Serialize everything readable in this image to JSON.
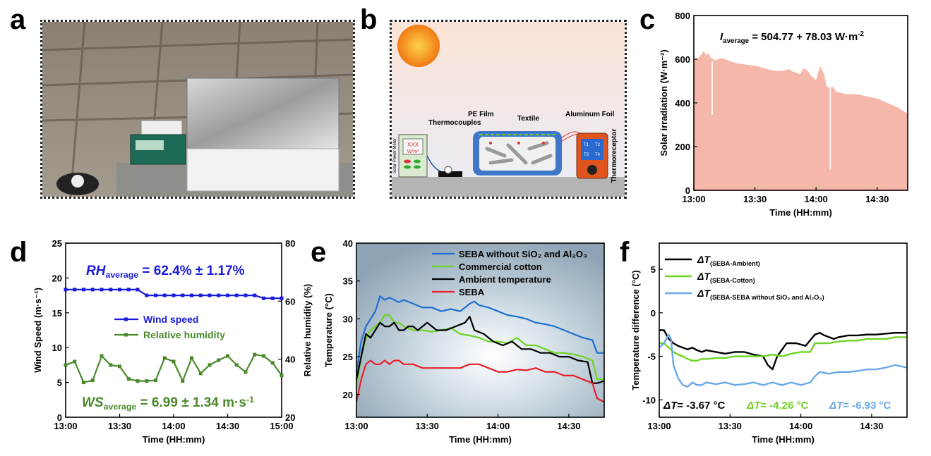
{
  "panel_labels": {
    "a": "a",
    "b": "b",
    "c": "c",
    "d": "d",
    "e": "e",
    "f": "f"
  },
  "schematic": {
    "pe_film": "PE Film",
    "thermocouples": "Thermocouples",
    "textile": "Textile",
    "aluminum_foil": "Aluminum Foil",
    "thermoreceptor": "Thermoreceptor",
    "solar_power_meter": "Solar Power Meter",
    "meter_reading": "XXX",
    "meter_unit": "W/m²",
    "channels": [
      "T1",
      "T2",
      "T3",
      "T4"
    ]
  },
  "chart_data": [
    {
      "id": "c",
      "type": "area",
      "xlabel": "Time (HH:mm)",
      "ylabel": "Solar irradiation (W·m⁻²)",
      "ylim": [
        0,
        800
      ],
      "yticks": [
        0,
        200,
        400,
        600,
        800
      ],
      "xticks": [
        "13:00",
        "13:30",
        "14:00",
        "14:30"
      ],
      "annotation": {
        "prefix": "I",
        "sub": "average",
        "text": " = 504.77 + 78.03 W·m",
        "sup": "-2"
      },
      "color": "#f5b7aa",
      "x_minutes": [
        0,
        2,
        4,
        5,
        6,
        7,
        8,
        10,
        12,
        14,
        18,
        22,
        26,
        30,
        34,
        38,
        42,
        45,
        47,
        48,
        50,
        52,
        54,
        56,
        58,
        60,
        62,
        64,
        65,
        66,
        68,
        70,
        75,
        80,
        85,
        90,
        95,
        100,
        105
      ],
      "values": [
        600,
        605,
        625,
        640,
        615,
        630,
        610,
        595,
        600,
        605,
        590,
        580,
        575,
        570,
        560,
        550,
        545,
        550,
        555,
        545,
        540,
        530,
        560,
        545,
        520,
        505,
        570,
        530,
        480,
        470,
        475,
        450,
        440,
        440,
        430,
        420,
        400,
        380,
        350
      ],
      "dips": [
        {
          "x_minutes": 9,
          "value": 345
        },
        {
          "x_minutes": 67,
          "value": 95
        }
      ]
    },
    {
      "id": "d",
      "type": "line",
      "xlabel": "Time (HH:mm)",
      "ylabel_left": "Wind Speed (m·s⁻¹)",
      "ylabel_right": "Relative humidity (%)",
      "ylim_left": [
        0,
        25
      ],
      "ylim_right": [
        20,
        80
      ],
      "yticks_left": [
        0,
        5,
        10,
        15,
        20,
        25
      ],
      "yticks_right": [
        20,
        40,
        60,
        80
      ],
      "xticks": [
        "13:00",
        "13:30",
        "14:00",
        "14:30",
        "15:00"
      ],
      "annotations": [
        {
          "prefix": "RH",
          "sub": "average",
          "text": " = 62.4% ± 1.17%",
          "color": "#1a1adb"
        },
        {
          "prefix": "WS",
          "sub": "average",
          "text": " = 6.99 ± 1.34 m·s",
          "sup": "-1",
          "color": "#4a8a2a"
        }
      ],
      "series": [
        {
          "name": "Wind speed",
          "color": "#1a1adb",
          "axis": "right",
          "x_minutes": [
            0,
            5,
            10,
            15,
            20,
            25,
            30,
            35,
            40,
            45,
            50,
            55,
            60,
            65,
            70,
            75,
            80,
            85,
            90,
            95,
            100,
            105,
            110,
            115,
            120
          ],
          "values": [
            64,
            64,
            64,
            64,
            64,
            64,
            64,
            64,
            64,
            62,
            62,
            62,
            62,
            62,
            62,
            62,
            62,
            62,
            62,
            62,
            62,
            62,
            61,
            61,
            61
          ]
        },
        {
          "name": "Relative humidity",
          "color": "#4a8a2a",
          "axis": "left",
          "x_minutes": [
            0,
            5,
            10,
            15,
            20,
            25,
            30,
            35,
            40,
            45,
            50,
            55,
            60,
            65,
            70,
            75,
            80,
            85,
            90,
            95,
            100,
            105,
            110,
            115,
            120
          ],
          "values": [
            7.5,
            8,
            5,
            5.3,
            8.8,
            7.5,
            7.3,
            5.5,
            5.2,
            5.2,
            5.3,
            8.5,
            8,
            5.2,
            8.5,
            6.3,
            7.5,
            8.2,
            8.8,
            7.5,
            6.5,
            9,
            8.8,
            7.8,
            6
          ]
        }
      ]
    },
    {
      "id": "e",
      "type": "line",
      "xlabel": "Time (HH:mm)",
      "ylabel": "Temperature (°C)",
      "ylim": [
        17,
        40
      ],
      "yticks": [
        20,
        25,
        30,
        35,
        40
      ],
      "xticks": [
        "13:00",
        "13:30",
        "14:00",
        "14:30"
      ],
      "series": [
        {
          "name": "SEBA without SiO₂ and Al₂O₃",
          "color": "#1e6fd1",
          "x_minutes": [
            0,
            2,
            4,
            6,
            8,
            10,
            12,
            14,
            16,
            18,
            20,
            24,
            28,
            32,
            36,
            40,
            44,
            48,
            50,
            52,
            56,
            60,
            64,
            68,
            72,
            76,
            80,
            84,
            88,
            92,
            96,
            100,
            102,
            105
          ],
          "values": [
            23,
            27,
            29,
            30,
            31,
            33,
            32.5,
            32.8,
            32.5,
            32.2,
            32.5,
            32,
            31.5,
            31.5,
            31,
            31.3,
            31,
            32,
            32.3,
            31.8,
            31.5,
            31,
            30.5,
            30.3,
            30,
            29.5,
            29.3,
            29,
            28.5,
            28,
            27.5,
            27.2,
            25.5,
            25.5
          ]
        },
        {
          "name": "Commercial cotton",
          "color": "#6dd422",
          "x_minutes": [
            0,
            2,
            4,
            6,
            8,
            10,
            12,
            14,
            16,
            18,
            20,
            24,
            28,
            32,
            36,
            40,
            44,
            48,
            52,
            56,
            60,
            64,
            68,
            72,
            76,
            80,
            84,
            88,
            92,
            96,
            100,
            102,
            105
          ],
          "values": [
            21,
            25,
            27.5,
            28.5,
            29,
            29.5,
            30.5,
            30.5,
            29.5,
            29.5,
            29,
            28.5,
            28.5,
            28.3,
            28.5,
            28.8,
            28,
            27.8,
            27.5,
            27,
            27,
            26.8,
            27.5,
            26.5,
            26.5,
            26,
            25.5,
            25.5,
            25.3,
            25,
            24.5,
            22,
            22
          ]
        },
        {
          "name": "Ambient temperature",
          "color": "#000000",
          "x_minutes": [
            0,
            2,
            4,
            6,
            8,
            10,
            12,
            14,
            16,
            18,
            20,
            22,
            24,
            26,
            28,
            30,
            34,
            38,
            42,
            46,
            48,
            50,
            54,
            58,
            62,
            66,
            70,
            74,
            78,
            82,
            86,
            90,
            94,
            98,
            100,
            102,
            105
          ],
          "values": [
            22,
            25,
            28,
            27.5,
            28.5,
            29.5,
            29,
            29,
            29.5,
            28.5,
            28.5,
            29,
            29,
            28.5,
            29,
            29.5,
            28.5,
            28.5,
            29,
            29.5,
            30.3,
            28.5,
            28,
            27,
            26.5,
            27,
            26,
            26,
            25.5,
            25.5,
            25,
            25,
            24.5,
            24.3,
            21.5,
            21.5,
            21.8
          ]
        },
        {
          "name": "SEBA",
          "color": "#e8202a",
          "x_minutes": [
            0,
            2,
            4,
            6,
            8,
            10,
            12,
            14,
            16,
            18,
            20,
            24,
            28,
            32,
            36,
            40,
            44,
            48,
            52,
            56,
            60,
            64,
            68,
            72,
            76,
            80,
            84,
            88,
            92,
            96,
            100,
            102,
            105
          ],
          "values": [
            19,
            22,
            24,
            24.5,
            24,
            24,
            24.5,
            24,
            24.5,
            24.5,
            24,
            24,
            23.5,
            23.5,
            23.5,
            23.5,
            23.5,
            24,
            24,
            23.5,
            23,
            23,
            23.3,
            23.2,
            23.5,
            23,
            23,
            22.5,
            22.5,
            22,
            21.5,
            19.5,
            19
          ]
        }
      ]
    },
    {
      "id": "f",
      "type": "line",
      "xlabel": "Time (HH:mm)",
      "ylabel": "Temperature difference (°C)",
      "ylim": [
        -12,
        8
      ],
      "yticks": [
        -10,
        -5,
        0,
        5
      ],
      "xticks": [
        "13:00",
        "13:30",
        "14:00",
        "14:30"
      ],
      "series": [
        {
          "name": "ΔT(SEBA-Ambient)",
          "name_parts": {
            "prefix": "ΔT",
            "sub": "(SEBA-Ambient)"
          },
          "color": "#000000",
          "x_minutes": [
            0,
            2,
            4,
            6,
            8,
            10,
            12,
            14,
            16,
            18,
            20,
            24,
            28,
            32,
            36,
            40,
            44,
            46,
            48,
            50,
            54,
            58,
            62,
            66,
            68,
            70,
            72,
            74,
            76,
            80,
            84,
            88,
            92,
            96,
            100,
            105
          ],
          "values": [
            -2,
            -2,
            -3,
            -3.5,
            -3.8,
            -4,
            -4.2,
            -4,
            -4.3,
            -4.5,
            -4.3,
            -4.5,
            -4.7,
            -4.5,
            -4.5,
            -4.8,
            -5,
            -6,
            -6.5,
            -5,
            -3.5,
            -3.5,
            -3.8,
            -2.5,
            -2.3,
            -2.6,
            -2.8,
            -3,
            -2.8,
            -2.6,
            -2.6,
            -2.5,
            -2.5,
            -2.4,
            -2.3,
            -2.3
          ]
        },
        {
          "name": "ΔT(SEBA-Cotton)",
          "name_parts": {
            "prefix": "ΔT",
            "sub": "(SEBA-Cotton)"
          },
          "color": "#6dd422",
          "x_minutes": [
            0,
            2,
            4,
            6,
            8,
            10,
            12,
            14,
            16,
            18,
            20,
            24,
            28,
            32,
            36,
            40,
            44,
            48,
            52,
            56,
            60,
            64,
            66,
            68,
            72,
            76,
            80,
            84,
            88,
            92,
            96,
            100,
            105
          ],
          "values": [
            -3.5,
            -3.5,
            -4,
            -4.5,
            -4.8,
            -5,
            -5.3,
            -5.5,
            -5.5,
            -5.3,
            -5.3,
            -5.2,
            -5.2,
            -5,
            -5,
            -5,
            -5,
            -4.8,
            -5,
            -4.7,
            -4.5,
            -4.5,
            -3.5,
            -3.5,
            -3.5,
            -3.3,
            -3.2,
            -3.2,
            -3,
            -3,
            -3,
            -2.8,
            -2.8
          ]
        },
        {
          "name": "ΔT(SEBA-SEBA without SiO₂ and Al₂O₃)",
          "name_parts": {
            "prefix": "ΔT",
            "sub": "(SEBA-SEBA without SiO₂ and Al₂O₃)"
          },
          "color": "#6aa8e8",
          "x_minutes": [
            0,
            2,
            3,
            4,
            5,
            6,
            8,
            10,
            12,
            14,
            16,
            18,
            20,
            24,
            28,
            32,
            36,
            40,
            44,
            48,
            52,
            56,
            60,
            64,
            66,
            68,
            72,
            76,
            80,
            84,
            88,
            92,
            96,
            100,
            105
          ],
          "values": [
            -4,
            -3.5,
            -3,
            -2.5,
            -3,
            -6,
            -7.5,
            -8.3,
            -8.5,
            -8,
            -8.3,
            -8.3,
            -8,
            -8.2,
            -8,
            -8.3,
            -8.2,
            -8,
            -8.3,
            -8,
            -8.3,
            -8,
            -8.3,
            -8,
            -7.3,
            -6.8,
            -7,
            -6.8,
            -6.8,
            -6.7,
            -6.5,
            -6.5,
            -6.3,
            -6,
            -6.3
          ]
        }
      ],
      "footer": [
        {
          "prefix": "ΔT",
          "text": "= -3.67 °C",
          "color": "#000000"
        },
        {
          "prefix": "ΔT",
          "text": "= -4.26 °C",
          "color": "#6dd422"
        },
        {
          "prefix": "ΔT",
          "text": "= -6.93 °C",
          "color": "#6aa8e8"
        }
      ]
    }
  ]
}
